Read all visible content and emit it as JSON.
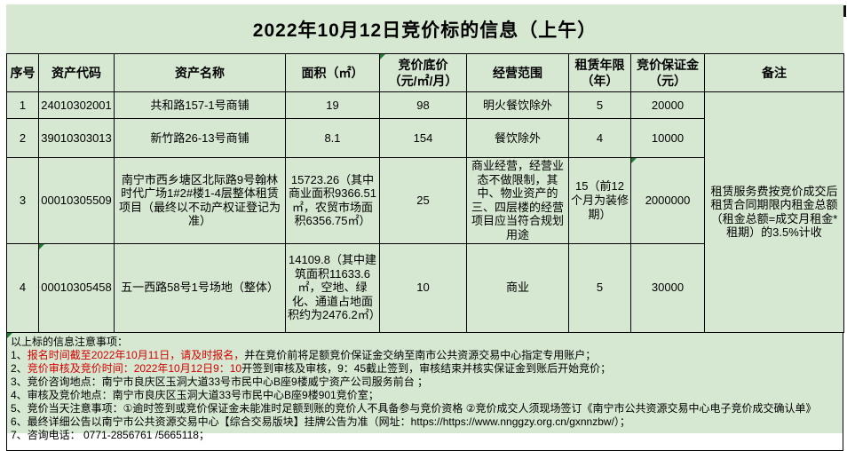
{
  "title": "2022年10月12日竞价标的信息（上午）",
  "colors": {
    "sheet_background": "#d6e8d2",
    "table_border": "#000000",
    "text": "#000000",
    "highlight_red": "#d40000",
    "cell_flag_green": "#1f7a33"
  },
  "icons": {
    "cell_flag": "green corner triangle (spreadsheet cell marker)"
  },
  "table": {
    "columns": [
      {
        "label": "序号",
        "sub": ""
      },
      {
        "label": "资产代码",
        "sub": ""
      },
      {
        "label": "资产名称",
        "sub": ""
      },
      {
        "label": "面积（㎡）",
        "sub": ""
      },
      {
        "label": "竞价底价",
        "sub": "（元/㎡/月）"
      },
      {
        "label": "经营范围",
        "sub": ""
      },
      {
        "label": "租赁年限",
        "sub": "（年）"
      },
      {
        "label": "竞价保证金",
        "sub": "（元）"
      },
      {
        "label": "备注",
        "sub": ""
      }
    ],
    "rows": [
      {
        "seq": "1",
        "code": "24010302001",
        "name": "共和路157-1号商铺",
        "area": "19",
        "price": "98",
        "scope": "明火餐饮除外",
        "years": "5",
        "deposit": "20000"
      },
      {
        "seq": "2",
        "code": "39010303013",
        "name": "新竹路26-13号商铺",
        "area": "8.1",
        "price": "154",
        "scope": "餐饮除外",
        "years": "4",
        "deposit": "10000"
      },
      {
        "seq": "3",
        "code": "00010305509",
        "name": "南宁市西乡塘区北际路9号翰林时代广场1#2#楼1-4层整体租赁项目（最终以不动产权证登记为准）",
        "area": "15723.26（其中商业面积9366.51㎡，农贸市场面积6356.75㎡）",
        "price": "25",
        "scope": "商业经营，经营业态不做限制，其中、物业资产的三、四层楼的经营项目应当符合规划用途",
        "years": "15（前12个月为装修期）",
        "deposit": "2000000"
      },
      {
        "seq": "4",
        "code": "00010305458",
        "name": "五一西路58号1号场地（整体）",
        "area": "14109.8（其中建筑面积11633.6㎡，空地、绿化、通道占地面积约为2476.2㎡）",
        "price": "10",
        "scope": "商业",
        "years": "5",
        "deposit": "30000"
      }
    ],
    "remark": "租赁服务费按竞价成交后租赁合同期限内租金总额（租金总额=成交月租金*租期）的3.5%计收"
  },
  "notes": {
    "lines": [
      {
        "segments": [
          {
            "text": "以上标的信息注意事项：",
            "color": "default"
          }
        ]
      },
      {
        "segments": [
          {
            "text": "1、",
            "color": "default"
          },
          {
            "text": "报名时间截至2022年10月11日，请及时报名，",
            "color": "red"
          },
          {
            "text": "并在竞价前将足额竞价保证金交纳至南市公共资源交易中心指定专用账户；",
            "color": "default"
          }
        ]
      },
      {
        "segments": [
          {
            "text": "2、",
            "color": "default"
          },
          {
            "text": "竞价审核及竞价时间：2022年10月12日9：10",
            "color": "red"
          },
          {
            "text": "开签到审核及审核，9：45截止签到，审核结束并核实保证金到账后开始竞价；",
            "color": "default"
          }
        ]
      },
      {
        "segments": [
          {
            "text": "3、竞价咨询地点：南宁市良庆区玉洞大道33号市民中心B座9楼威宁资产公司服务前台 ；",
            "color": "default"
          }
        ]
      },
      {
        "segments": [
          {
            "text": "4、审核及竞价地点：南宁市良庆区玉洞大道33号市民中心B座9楼901竞价室；",
            "color": "default"
          }
        ]
      },
      {
        "segments": [
          {
            "text": "5、竞价当天注意事项：①逾时签到或竞价保证金未能准时足额到账的竞价人不具备参与竞价资格 ②竞价成交人须现场签订《南宁市公共资源交易中心电子竞价成交确认单》",
            "color": "default"
          }
        ]
      },
      {
        "segments": [
          {
            "text": "6、最终详细公告以南宁市公共资源交易中心【综合交易版块】挂牌公告为准（网址：https://https://www.nnggzy.org.cn/gxnnzbw/）；",
            "color": "default"
          }
        ]
      },
      {
        "segments": [
          {
            "text": "7、咨询电话：  0771-2856761 /5665118；",
            "color": "default"
          }
        ]
      }
    ]
  }
}
